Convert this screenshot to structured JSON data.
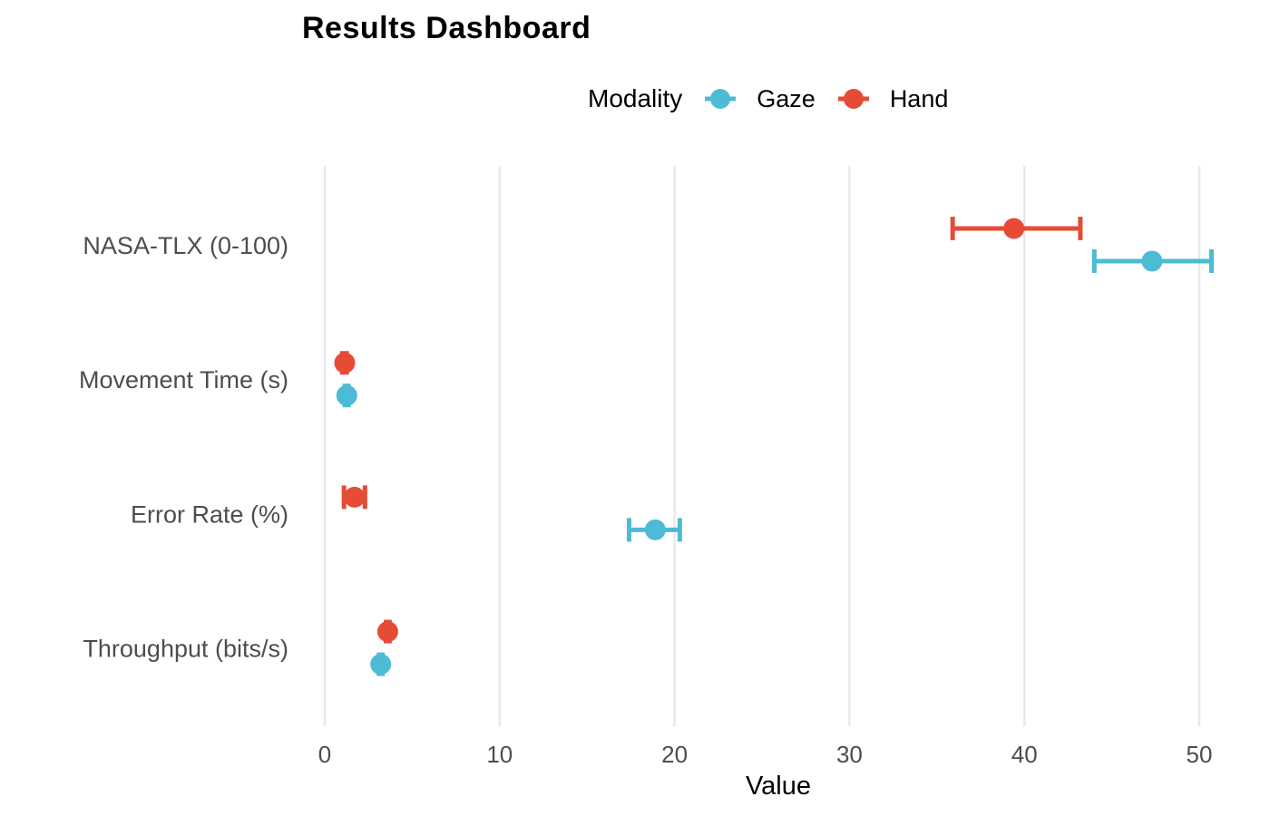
{
  "page": {
    "background": "#ffffff"
  },
  "chart_data": {
    "type": "scatter",
    "subtype": "horizontal-dot-plot-with-error-bars",
    "title": "Results Dashboard",
    "xlabel": "Value",
    "ylabel": "",
    "categories": [
      "NASA-TLX (0-100)",
      "Movement Time (s)",
      "Error Rate (%)",
      "Throughput (bits/s)"
    ],
    "x_ticks": [
      0,
      10,
      20,
      30,
      40,
      50
    ],
    "xlim": [
      -0.5,
      51.3
    ],
    "grid": "vertical-only",
    "legend_title": "Modality",
    "legend_position": "top",
    "series": [
      {
        "name": "Gaze",
        "color": "#4DBBD5",
        "dodge": "below",
        "values": [
          47.3,
          1.26,
          18.9,
          3.2
        ],
        "ci_low": [
          44.0,
          1.15,
          17.4,
          3.1
        ],
        "ci_high": [
          50.7,
          1.35,
          20.3,
          3.3
        ]
      },
      {
        "name": "Hand",
        "color": "#E64B35",
        "dodge": "above",
        "values": [
          39.4,
          1.14,
          1.7,
          3.6
        ],
        "ci_low": [
          35.9,
          1.0,
          1.1,
          3.5
        ],
        "ci_high": [
          43.2,
          1.25,
          2.3,
          3.7
        ]
      }
    ],
    "colors": {
      "grid_line": "#E9E9E9",
      "tick_label": "#4D4D4D",
      "category_label": "#4D4D4D",
      "axis_title": "#000000",
      "title": "#000000"
    }
  }
}
